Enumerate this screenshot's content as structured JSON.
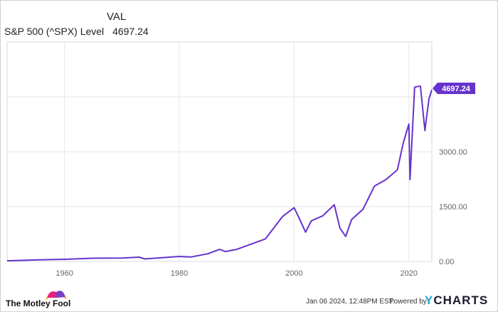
{
  "header": {
    "column_label": "VAL",
    "series_name": "S&P 500 (^SPX) Level",
    "series_value": "4697.24"
  },
  "callout": {
    "value": "4697.24",
    "color": "#6633cc"
  },
  "footer": {
    "timestamp": "Jan 06 2024, 12:48PM EST.",
    "powered_by": "Powered by",
    "brand_y": "Y",
    "brand_rest": "CHARTS",
    "logo_text": "The Motley Fool"
  },
  "colors": {
    "line": "#6633cc",
    "grid": "#e6e6e6",
    "axis_text": "#666666"
  },
  "chart_data": {
    "type": "line",
    "title": "S&P 500 (^SPX) Level",
    "xlabel": "",
    "ylabel": "",
    "x_ticks": [
      "1960",
      "1980",
      "2000",
      "2020"
    ],
    "y_ticks": [
      "0.00",
      "1500.00",
      "3000.00"
    ],
    "xlim": [
      1950,
      2024
    ],
    "ylim": [
      0,
      6000
    ],
    "grid": true,
    "legend_position": "top-left",
    "series": [
      {
        "name": "S&P 500 (^SPX) Level",
        "x": [
          1950,
          1955,
          1960,
          1965,
          1970,
          1973,
          1974,
          1980,
          1982,
          1985,
          1987,
          1988,
          1990,
          1995,
          1998,
          2000,
          2001,
          2002,
          2003,
          2005,
          2007,
          2008,
          2009,
          2010,
          2012,
          2014,
          2016,
          2018,
          2019,
          2020,
          2020.2,
          2021,
          2022,
          2022.8,
          2023,
          2023.5,
          2024
        ],
        "values": [
          17,
          40,
          58,
          88,
          92,
          116,
          68,
          136,
          120,
          211,
          330,
          270,
          330,
          616,
          1229,
          1469,
          1148,
          800,
          1111,
          1248,
          1549,
          903,
          683,
          1141,
          1426,
          2059,
          2239,
          2506,
          3230,
          3756,
          2237,
          4766,
          4796,
          3577,
          3839,
          4450,
          4697.24
        ]
      }
    ],
    "last_value_label": "4697.24"
  }
}
